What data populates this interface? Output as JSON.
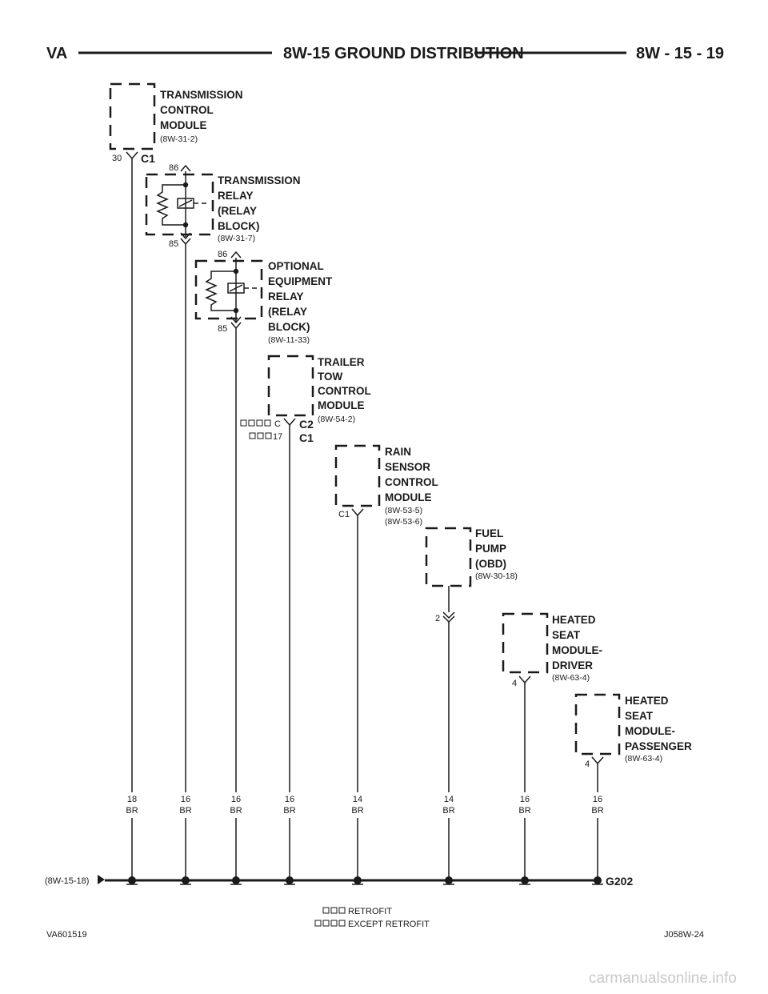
{
  "header": {
    "left": "VA",
    "title": "8W-15 GROUND DISTRIBUTION",
    "page": "8W - 15 - 19"
  },
  "components": {
    "tcm": {
      "lines": [
        "TRANSMISSION",
        "CONTROL",
        "MODULE"
      ],
      "ref": "(8W-31-2)",
      "pin": "30",
      "connector": "C1"
    },
    "trans_relay": {
      "lines": [
        "TRANSMISSION",
        "RELAY",
        "(RELAY",
        "BLOCK)"
      ],
      "ref": "(8W-31-7)",
      "pin_top": "86",
      "pin_bottom": "85"
    },
    "opt_relay": {
      "lines": [
        "OPTIONAL",
        "EQUIPMENT",
        "RELAY",
        "(RELAY",
        "BLOCK)"
      ],
      "ref": "(8W-11-33)",
      "pin_top": "86",
      "pin_bottom": "85"
    },
    "trailer": {
      "lines": [
        "TRAILER",
        "TOW",
        "CONTROL",
        "MODULE"
      ],
      "ref": "(8W-54-2)",
      "pin_except": "C",
      "pin_retrofit": "17",
      "conn_except": "C2",
      "conn_retrofit": "C1"
    },
    "rain": {
      "lines": [
        "RAIN",
        "SENSOR",
        "CONTROL",
        "MODULE"
      ],
      "refs": [
        "(8W-53-5)",
        "(8W-53-6)"
      ],
      "connector": "C1"
    },
    "fuel": {
      "lines": [
        "FUEL",
        "PUMP",
        "(OBD)"
      ],
      "ref": "(8W-30-18)",
      "pin": "2"
    },
    "seat_driver": {
      "lines": [
        "HEATED",
        "SEAT",
        "MODULE-",
        "DRIVER"
      ],
      "ref": "(8W-63-4)",
      "pin": "4"
    },
    "seat_pass": {
      "lines": [
        "HEATED",
        "SEAT",
        "MODULE-",
        "PASSENGER"
      ],
      "ref": "(8W-63-4)",
      "pin": "4"
    }
  },
  "wires": [
    {
      "gauge": "18",
      "color": "BR"
    },
    {
      "gauge": "16",
      "color": "BR"
    },
    {
      "gauge": "16",
      "color": "BR"
    },
    {
      "gauge": "16",
      "color": "BR"
    },
    {
      "gauge": "14",
      "color": "BR"
    },
    {
      "gauge": "14",
      "color": "BR"
    },
    {
      "gauge": "16",
      "color": "BR"
    },
    {
      "gauge": "16",
      "color": "BR"
    }
  ],
  "ground": {
    "label": "G202",
    "ref": "(8W-15-18)"
  },
  "legend": {
    "retrofit": "RETROFIT",
    "except": "EXCEPT RETROFIT"
  },
  "footer": {
    "left": "VA601519",
    "right": "J058W-24"
  },
  "watermark": "carmanualsonline.info"
}
